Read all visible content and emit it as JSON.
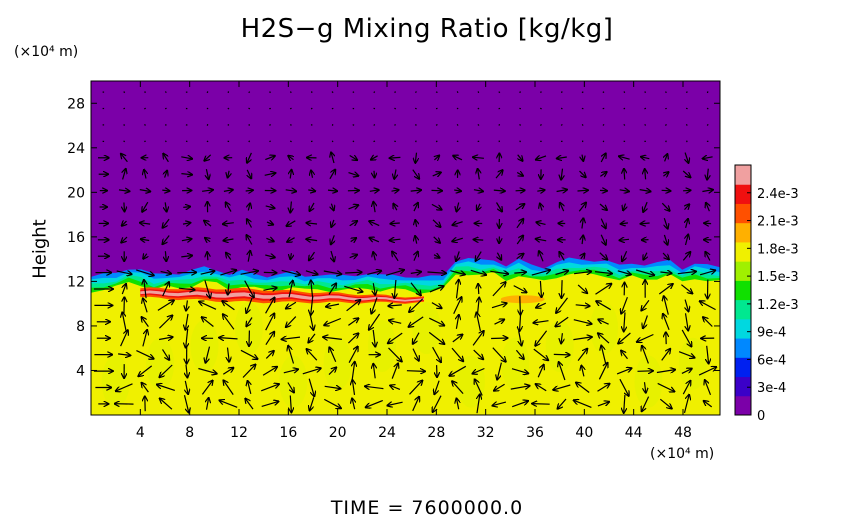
{
  "chart_data": {
    "type": "heatmap",
    "title": "H2S−g Mixing Ratio [kg/kg]",
    "ylabel": "Height",
    "xunit": "(×10⁴ m)",
    "yunit": "(×10⁴ m)",
    "footer": "TIME  =  7600000.0",
    "xlim": [
      0,
      51
    ],
    "ylim": [
      0,
      30
    ],
    "x_ticks": [
      "4",
      "8",
      "12",
      "16",
      "20",
      "24",
      "28",
      "32",
      "36",
      "40",
      "44",
      "48"
    ],
    "y_ticks": [
      "4",
      "8",
      "12",
      "16",
      "20",
      "24",
      "28"
    ],
    "colorbar": {
      "ticks": [
        "0",
        "3e-4",
        "6e-4",
        "9e-4",
        "1.2e-3",
        "1.5e-3",
        "1.8e-3",
        "2.1e-3",
        "2.4e-3"
      ],
      "range": [
        0,
        0.0027
      ],
      "colors": [
        "#7b00a8",
        "#3b00c8",
        "#0020f0",
        "#0088ff",
        "#00d8e0",
        "#00e890",
        "#10e000",
        "#a0f000",
        "#f0f000",
        "#ffb000",
        "#ff5000",
        "#f01010",
        "#f0a0a0"
      ]
    },
    "field": {
      "upper_value": 0,
      "lower_value": 0.0018,
      "interface_heights": [
        12.4,
        12.6,
        12.8,
        13.2,
        13.0,
        12.6,
        12.8,
        12.7,
        12.9,
        13.3,
        13.1,
        12.6,
        12.9,
        12.7,
        12.5,
        12.6,
        12.8,
        12.5,
        12.6,
        12.5,
        12.5,
        12.6,
        12.7,
        12.5,
        12.6,
        12.5,
        12.3,
        12.4,
        12.6,
        13.9,
        14.0,
        13.9,
        14.0,
        13.4,
        13.9,
        13.5,
        13.3,
        13.7,
        14.0,
        14.0,
        13.9,
        13.8,
        13.4,
        13.7,
        13.5,
        13.6,
        13.9,
        13.2,
        13.6,
        13.4,
        13.3
      ],
      "hot_band": {
        "x_start": 4,
        "x_end": 27,
        "y_top": 11.4,
        "y_bottom": 10.2,
        "peak_value": 0.0025
      }
    },
    "vector_field": "velocity arrows overlay"
  }
}
